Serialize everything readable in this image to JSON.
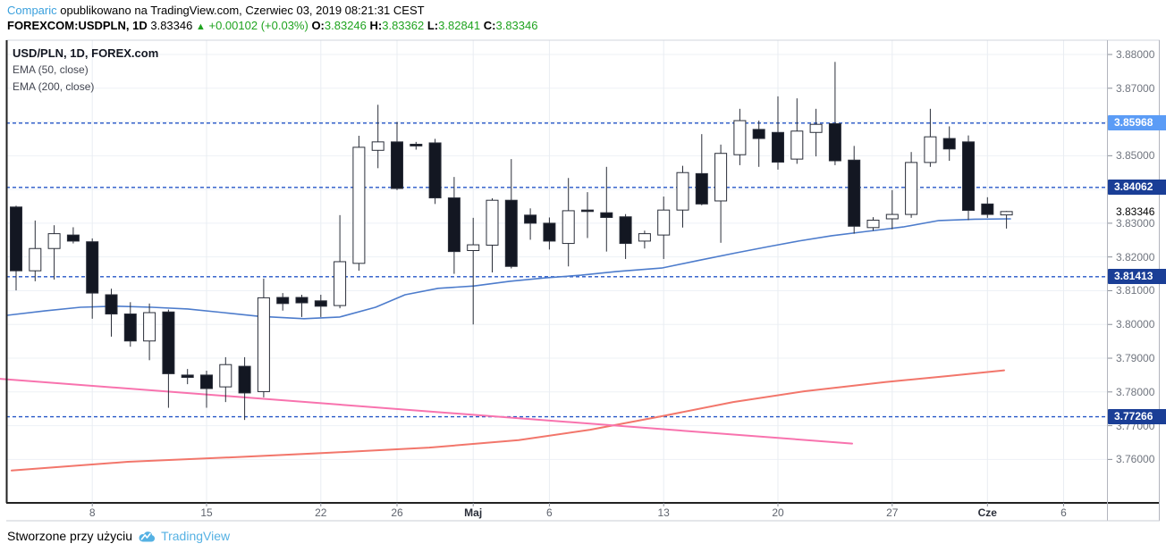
{
  "header": {
    "publisher": "Comparic",
    "publish_suffix": " opublikowano na TradingView.com, Czerwiec 03, 2019 08:21:31 CEST",
    "symbol": "FOREXCOM:USDPLN, 1D",
    "last_price": "3.83346",
    "direction_icon": "up-triangle",
    "change": "+0.00102 (+0.03%)",
    "o_label": "O:",
    "o_value": "3.83246",
    "h_label": "H:",
    "h_value": "3.83362",
    "l_label": "L:",
    "l_value": "3.82841",
    "c_label": "C:",
    "c_value": "3.83346"
  },
  "legend": {
    "title": "USD/PLN, 1D, FOREX.com",
    "ema50_label": "EMA (50, close)",
    "ema200_label": "EMA (200, close)"
  },
  "footer": {
    "text": "Stworzone przy użyciu",
    "brand": "TradingView",
    "logo": "tradingview-cloud-icon"
  },
  "colors": {
    "green": "#1fa31f",
    "link_blue": "#3aa0dd",
    "brand_blue": "#55b1e3",
    "level_line": "#2456c7",
    "badge_dark": "#1a3e96",
    "badge_light": "#5b9cf6",
    "ema50": "#4d7ccc",
    "ema200": "#f2766b",
    "trendline": "#f873ae",
    "bull": "#ffffff",
    "bear": "#131722",
    "candle_stroke": "#2a2e39",
    "grid": "#edf1f6",
    "axis_text": "#70757f"
  },
  "chart_data": {
    "type": "candlestick",
    "title": "USD/PLN, 1D, FOREX.com",
    "interval": "1D",
    "ylim": [
      3.755,
      3.885
    ],
    "grid_prices": [
      3.88,
      3.87,
      3.86,
      3.85,
      3.84,
      3.83,
      3.82,
      3.81,
      3.8,
      3.79,
      3.78,
      3.77,
      3.76
    ],
    "y_ticks": [
      {
        "label": "3.88000",
        "price": 3.88
      },
      {
        "label": "3.87000",
        "price": 3.87
      },
      {
        "label": "3.85000",
        "price": 3.85
      },
      {
        "label": "3.83000",
        "price": 3.83
      },
      {
        "label": "3.82000",
        "price": 3.82
      },
      {
        "label": "3.81000",
        "price": 3.81
      },
      {
        "label": "3.80000",
        "price": 3.8
      },
      {
        "label": "3.79000",
        "price": 3.79
      },
      {
        "label": "3.78000",
        "price": 3.78
      },
      {
        "label": "3.77000",
        "price": 3.77
      },
      {
        "label": "3.76000",
        "price": 3.76
      }
    ],
    "current_price": {
      "label": "3.83346",
      "price": 3.83346
    },
    "levels": [
      {
        "label": "3.85968",
        "price": 3.85968,
        "variant": "light"
      },
      {
        "label": "3.84062",
        "price": 3.84062,
        "variant": "dark"
      },
      {
        "label": "3.81413",
        "price": 3.81413,
        "variant": "dark"
      },
      {
        "label": "3.77266",
        "price": 3.77266,
        "variant": "dark"
      }
    ],
    "x_ticks": [
      {
        "label": "8",
        "i": 4,
        "bold": false
      },
      {
        "label": "15",
        "i": 10,
        "bold": false
      },
      {
        "label": "22",
        "i": 16,
        "bold": false
      },
      {
        "label": "26",
        "i": 20,
        "bold": false
      },
      {
        "label": "Maj",
        "i": 24,
        "bold": true
      },
      {
        "label": "6",
        "i": 28,
        "bold": false
      },
      {
        "label": "13",
        "i": 34,
        "bold": false
      },
      {
        "label": "20",
        "i": 40,
        "bold": false
      },
      {
        "label": "27",
        "i": 46,
        "bold": false
      },
      {
        "label": "Cze",
        "i": 51,
        "bold": true
      },
      {
        "label": "6",
        "i": 55,
        "bold": false
      }
    ],
    "ohlc": [
      [
        3.8348,
        3.8352,
        3.8101,
        3.8159
      ],
      [
        3.8159,
        3.8308,
        3.8128,
        3.8225
      ],
      [
        3.8225,
        3.8294,
        3.8133,
        3.8269
      ],
      [
        3.8265,
        3.8288,
        3.824,
        3.8247
      ],
      [
        3.8245,
        3.8255,
        3.8017,
        3.8093
      ],
      [
        3.8088,
        3.8106,
        3.7964,
        3.8031
      ],
      [
        3.8031,
        3.8066,
        3.7934,
        3.7951
      ],
      [
        3.7951,
        3.8062,
        3.7894,
        3.8035
      ],
      [
        3.8037,
        3.8044,
        3.7753,
        3.7854
      ],
      [
        3.785,
        3.7868,
        3.7823,
        3.7843
      ],
      [
        3.785,
        3.7863,
        3.7753,
        3.781
      ],
      [
        3.7815,
        3.7903,
        3.777,
        3.7881
      ],
      [
        3.7876,
        3.7903,
        3.7717,
        3.7797
      ],
      [
        3.7801,
        3.8136,
        3.7784,
        3.8079
      ],
      [
        3.808,
        3.8093,
        3.8041,
        3.8062
      ],
      [
        3.808,
        3.8088,
        3.8022,
        3.8064
      ],
      [
        3.807,
        3.8088,
        3.8022,
        3.8054
      ],
      [
        3.8056,
        3.8324,
        3.8048,
        3.8186
      ],
      [
        3.8181,
        3.8559,
        3.8159,
        3.8525
      ],
      [
        3.8516,
        3.8651,
        3.8463,
        3.8541
      ],
      [
        3.8541,
        3.86,
        3.8398,
        3.8403
      ],
      [
        3.8534,
        3.8541,
        3.8518,
        3.8529
      ],
      [
        3.8538,
        3.855,
        3.8357,
        3.8375
      ],
      [
        3.8375,
        3.8437,
        3.815,
        3.8216
      ],
      [
        3.8219,
        3.8316,
        3.8,
        3.8236
      ],
      [
        3.8235,
        3.8374,
        3.8154,
        3.8368
      ],
      [
        3.8368,
        3.849,
        3.8166,
        3.8172
      ],
      [
        3.8324,
        3.8344,
        3.8251,
        3.83
      ],
      [
        3.83,
        3.8317,
        3.8222,
        3.8247
      ],
      [
        3.824,
        3.8434,
        3.8172,
        3.8337
      ],
      [
        3.8339,
        3.8392,
        3.8256,
        3.8335
      ],
      [
        3.8331,
        3.8467,
        3.8216,
        3.8317
      ],
      [
        3.8319,
        3.8327,
        3.8194,
        3.824
      ],
      [
        3.8247,
        3.8278,
        3.8225,
        3.8269
      ],
      [
        3.8265,
        3.8379,
        3.8194,
        3.8339
      ],
      [
        3.8339,
        3.847,
        3.8287,
        3.845
      ],
      [
        3.8447,
        3.8564,
        3.8353,
        3.8357
      ],
      [
        3.8366,
        3.8533,
        3.8242,
        3.8507
      ],
      [
        3.8503,
        3.8639,
        3.8472,
        3.8604
      ],
      [
        3.8578,
        3.8604,
        3.8467,
        3.8551
      ],
      [
        3.8569,
        3.8676,
        3.8459,
        3.8481
      ],
      [
        3.849,
        3.867,
        3.8476,
        3.8573
      ],
      [
        3.8569,
        3.8639,
        3.8498,
        3.8593
      ],
      [
        3.8595,
        3.8778,
        3.8472,
        3.8485
      ],
      [
        3.8487,
        3.8529,
        3.8269,
        3.8291
      ],
      [
        3.8287,
        3.8318,
        3.8278,
        3.8309
      ],
      [
        3.8313,
        3.8398,
        3.8282,
        3.8326
      ],
      [
        3.8326,
        3.8511,
        3.8316,
        3.848
      ],
      [
        3.848,
        3.8639,
        3.8467,
        3.8556
      ],
      [
        3.8551,
        3.8587,
        3.8485,
        3.852
      ],
      [
        3.8541,
        3.856,
        3.8309,
        3.8338
      ],
      [
        3.8357,
        3.8377,
        3.8316,
        3.8326
      ],
      [
        3.83246,
        3.83362,
        3.82841,
        3.83346
      ]
    ],
    "series": [
      {
        "name": "EMA (50, close)",
        "color_key": "ema50",
        "width": 1.6,
        "points": [
          [
            8,
            3.8027
          ],
          [
            50,
            3.804
          ],
          [
            90,
            3.8051
          ],
          [
            130,
            3.8054
          ],
          [
            170,
            3.8051
          ],
          [
            210,
            3.8046
          ],
          [
            250,
            3.8035
          ],
          [
            290,
            3.8024
          ],
          [
            340,
            3.8017
          ],
          [
            380,
            3.8022
          ],
          [
            420,
            3.8051
          ],
          [
            453,
            3.8088
          ],
          [
            490,
            3.8107
          ],
          [
            530,
            3.8114
          ],
          [
            570,
            3.8128
          ],
          [
            610,
            3.8138
          ],
          [
            650,
            3.8146
          ],
          [
            690,
            3.8157
          ],
          [
            740,
            3.8167
          ],
          [
            780,
            3.8189
          ],
          [
            823,
            3.8212
          ],
          [
            860,
            3.8231
          ],
          [
            893,
            3.8247
          ],
          [
            930,
            3.8263
          ],
          [
            970,
            3.8276
          ],
          [
            1010,
            3.8289
          ],
          [
            1050,
            3.8308
          ],
          [
            1090,
            3.8312
          ],
          [
            1130,
            3.8313
          ]
        ]
      },
      {
        "name": "EMA (200, close)",
        "color_key": "ema200",
        "width": 2,
        "points": [
          [
            13,
            3.7567
          ],
          [
            143,
            3.7593
          ],
          [
            257,
            3.7606
          ],
          [
            370,
            3.762
          ],
          [
            480,
            3.7635
          ],
          [
            580,
            3.7657
          ],
          [
            660,
            3.7688
          ],
          [
            740,
            3.7728
          ],
          [
            820,
            3.777
          ],
          [
            900,
            3.7802
          ],
          [
            990,
            3.7829
          ],
          [
            1060,
            3.7847
          ],
          [
            1123,
            3.7864
          ]
        ]
      },
      {
        "name": "descending-trendline",
        "color_key": "trendline",
        "width": 2,
        "points": [
          [
            0,
            3.7839
          ],
          [
            953,
            3.7647
          ]
        ]
      }
    ]
  }
}
